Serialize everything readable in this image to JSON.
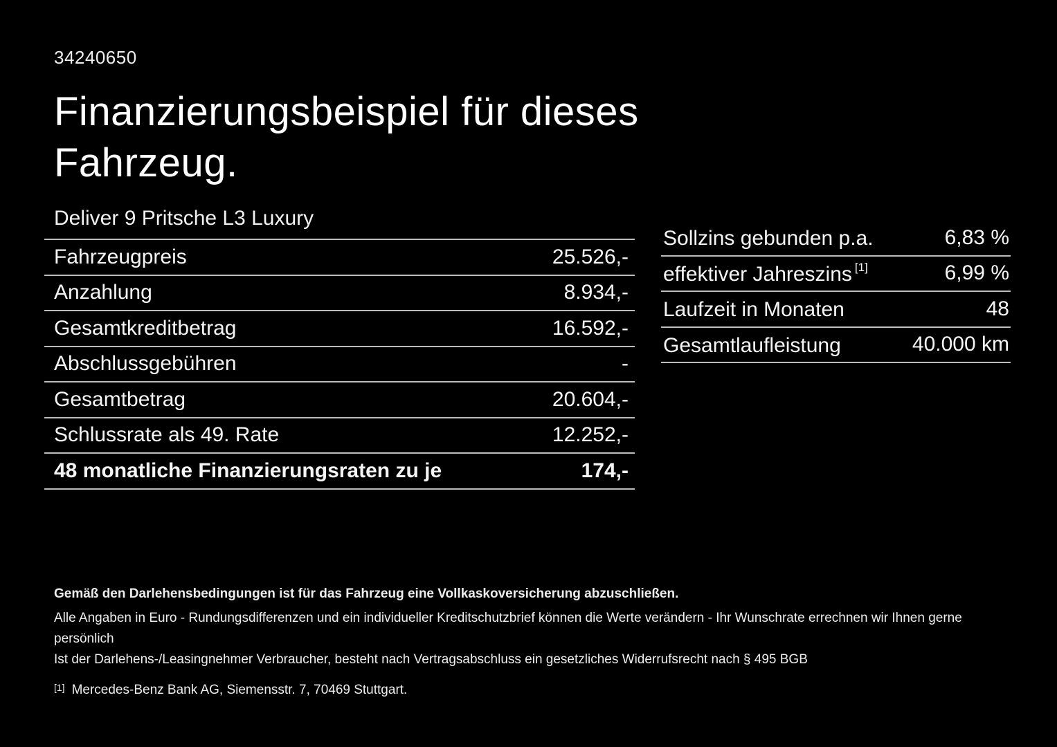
{
  "page": {
    "doc_id": "34240650",
    "title": "Finanzierungsbeispiel für dieses Fahrzeug.",
    "vehicle_name": "Deliver 9 Pritsche L3 Luxury"
  },
  "colors": {
    "background": "#000000",
    "text": "#f5f5f5",
    "divider": "#bdbdbd"
  },
  "finance_table": {
    "rows": [
      {
        "label": "Fahrzeugpreis",
        "value": "25.526,-"
      },
      {
        "label": "Anzahlung",
        "value": "8.934,-"
      },
      {
        "label": "Gesamtkreditbetrag",
        "value": "16.592,-"
      },
      {
        "label": "Abschlussgebühren",
        "value": "-"
      },
      {
        "label": "Gesamtbetrag",
        "value": "20.604,-"
      },
      {
        "label": "Schlussrate als 49. Rate",
        "value": "12.252,-"
      },
      {
        "label": "48 monatliche Finanzierungsraten zu je",
        "value": "174,-"
      }
    ]
  },
  "conditions_table": {
    "rows": [
      {
        "label": "Sollzins gebunden p.a.",
        "value": "6,83 %"
      },
      {
        "label": "effektiver Jahreszins",
        "sup": "[1]",
        "value": "6,99 %"
      },
      {
        "label": "Laufzeit in Monaten",
        "value": "48"
      },
      {
        "label": "Gesamtlaufleistung",
        "value": "40.000 km"
      }
    ]
  },
  "footer": {
    "line1": "Gemäß den Darlehensbedingungen ist für das Fahrzeug eine Vollkaskoversicherung abzuschließen.",
    "line2": "Alle Angaben in Euro - Rundungsdifferenzen und ein individueller Kreditschutzbrief können die Werte verändern - Ihr Wunschrate errechnen wir Ihnen gerne persönlich",
    "line3": "Ist der Darlehens-/Leasingnehmer Verbraucher, besteht nach Vertragsabschluss ein gesetzliches Widerrufsrecht nach § 495 BGB",
    "footnote_marker": "[1]",
    "footnote_text": "Mercedes-Benz Bank AG, Siemensstr. 7, 70469 Stuttgart."
  }
}
